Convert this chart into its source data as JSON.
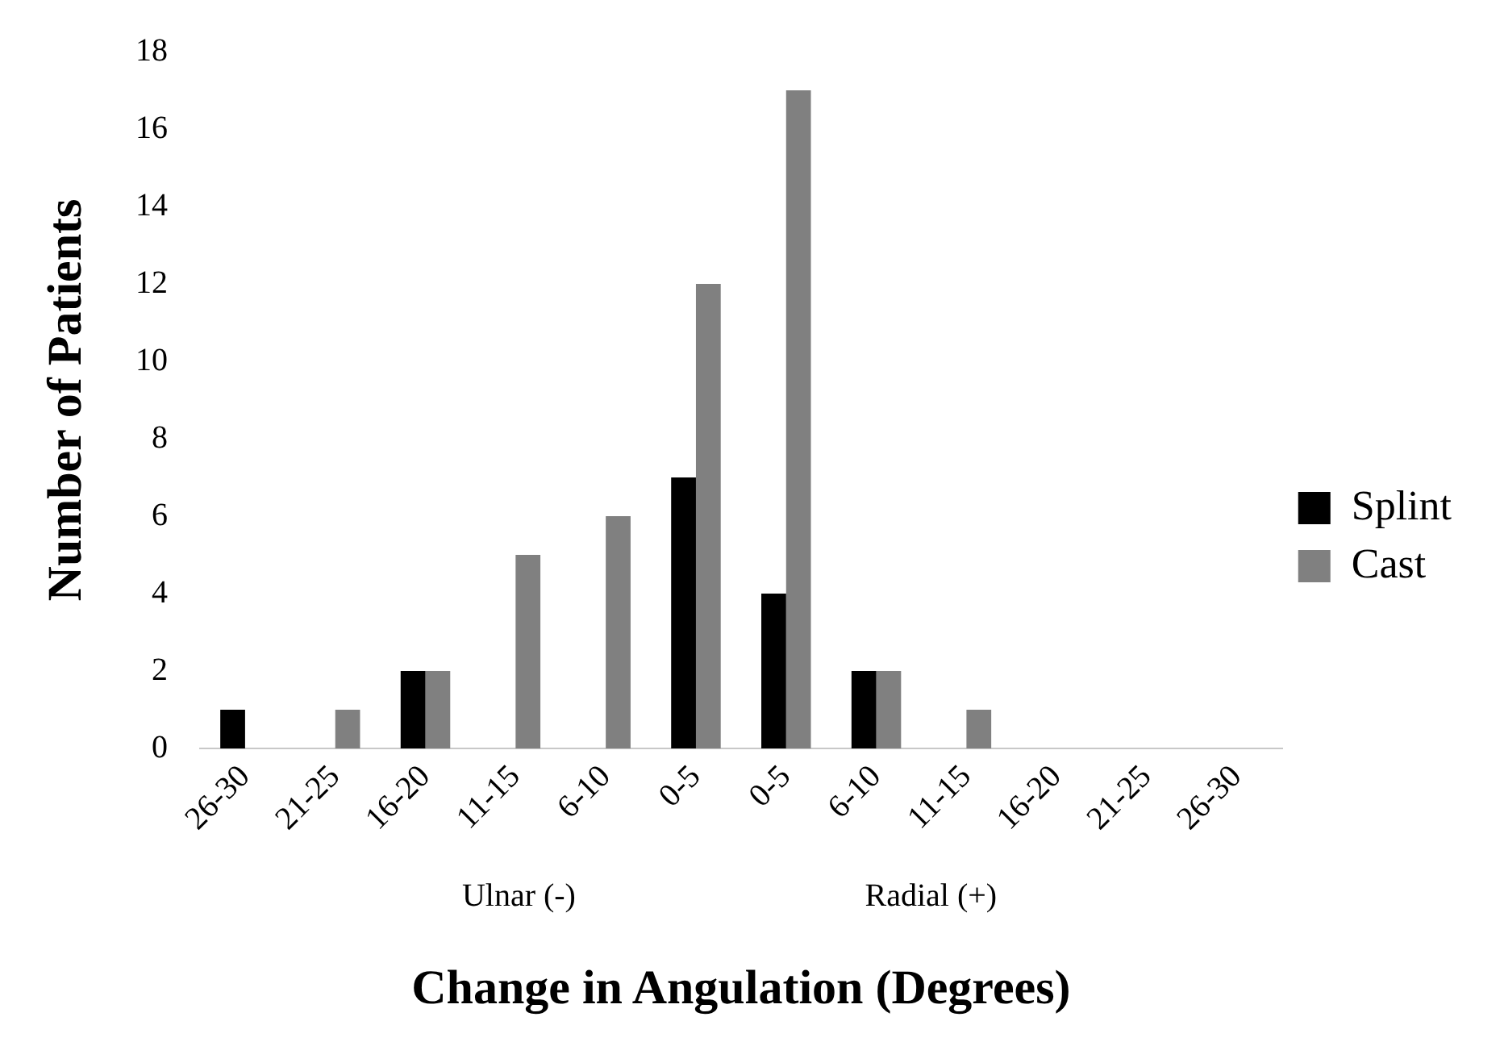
{
  "chart_data": {
    "type": "bar",
    "xlabel": "Change in Angulation (Degrees)",
    "ylabel": "Number of Patients",
    "categories": [
      "26-30",
      "21-25",
      "16-20",
      "11-15",
      "6-10",
      "0-5",
      "0-5",
      "6-10",
      "11-15",
      "16-20",
      "21-25",
      "26-30"
    ],
    "series": [
      {
        "name": "Splint",
        "color": "#000000",
        "values": [
          1,
          0,
          2,
          0,
          0,
          7,
          4,
          2,
          0,
          0,
          0,
          0
        ]
      },
      {
        "name": "Cast",
        "color": "#808080",
        "values": [
          0,
          1,
          2,
          5,
          6,
          12,
          17,
          2,
          1,
          0,
          0,
          0
        ]
      }
    ],
    "ylim": [
      0,
      18
    ],
    "yticks": [
      0,
      2,
      4,
      6,
      8,
      10,
      12,
      14,
      16,
      18
    ],
    "grid": false,
    "legend": "right",
    "annotations": [
      "Ulnar (-)",
      "Radial (+)"
    ]
  }
}
